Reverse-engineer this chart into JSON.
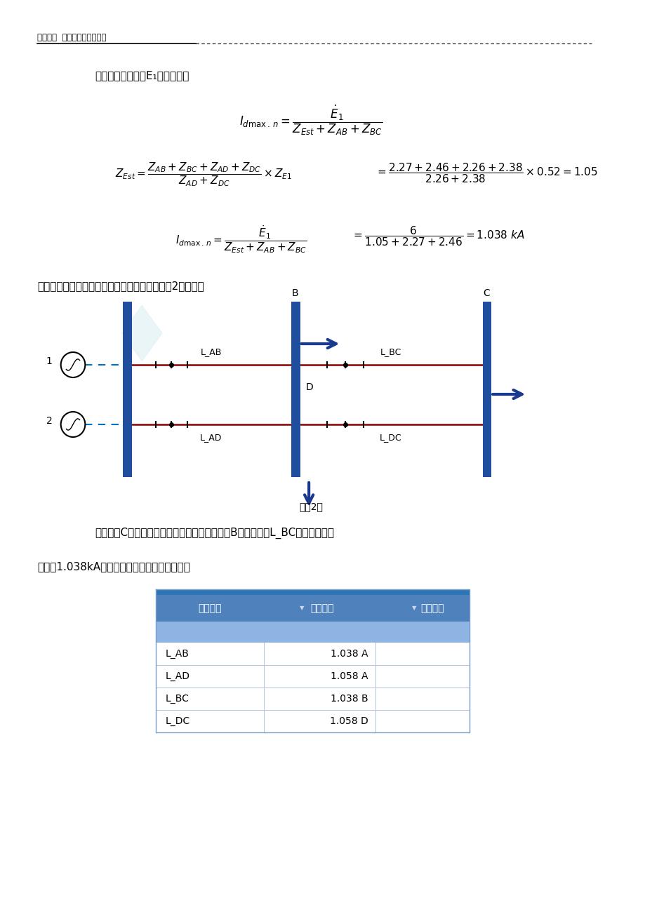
{
  "bg_color": "#ffffff",
  "page_width": 9.2,
  "page_height": 13.0,
  "header_text": "第十三章  各单元保护定值计算",
  "intro_text": "计算公式，以电源E₁投入为例。",
  "caption_text": "在软件中最小运行方式所对应的系统图如下图（2）所示：",
  "fig_caption": "图（2）",
  "result_text1": "软件根据C点三相短路的计算结果如下：可见由B点流向线路L_BC的短路电流正",
  "result_text2": "好等于1.038kA，和上述理论结算的结果相同。",
  "table_header": [
    "线路名称",
    "电流幅值",
    "节点名称"
  ],
  "table_data": [
    [
      "L_AB",
      "1.038 A",
      ""
    ],
    [
      "L_AD",
      "1.058 A",
      ""
    ],
    [
      "L_BC",
      "1.038 B",
      ""
    ],
    [
      "L_DC",
      "1.058 D",
      ""
    ]
  ],
  "table_header_top_color": "#2e75b6",
  "table_header_bg": "#4f81bd",
  "table_header_text_color": "#ffffff",
  "table_stripe_bg": "#8db4e2",
  "table_border_color": "#7a9cc8",
  "table_sep_color": "#b0c4de",
  "header_line_color": "#4472c4",
  "bus_color": "#1f4e9e",
  "line_color": "#8b0000",
  "arrow_color": "#1a3a8f",
  "source_line_color": "#0070c0",
  "dot_color": "#000000",
  "watermark_color": "#add8e6"
}
